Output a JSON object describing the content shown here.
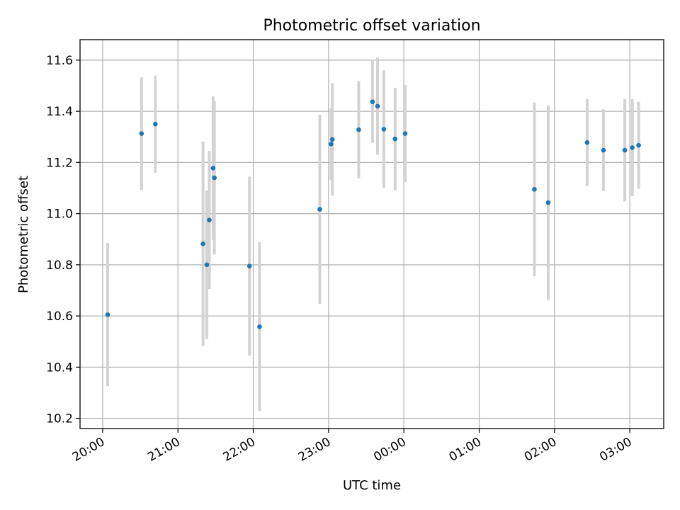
{
  "chart_data": {
    "type": "scatter",
    "title": "Photometric offset variation",
    "xlabel": "UTC time",
    "ylabel": "Photometric offset",
    "grid": true,
    "xlim_hours": [
      19.7,
      27.45
    ],
    "ylim": [
      10.16,
      11.68
    ],
    "x_tick_hours": [
      20,
      21,
      22,
      23,
      24,
      25,
      26,
      27
    ],
    "x_tick_labels": [
      "20:00",
      "21:00",
      "22:00",
      "23:00",
      "00:00",
      "01:00",
      "02:00",
      "03:00"
    ],
    "y_ticks": [
      10.2,
      10.4,
      10.6,
      10.8,
      11.0,
      11.2,
      11.4,
      11.6
    ],
    "y_tick_labels": [
      "10.2",
      "10.4",
      "10.6",
      "10.8",
      "11.0",
      "11.2",
      "11.4",
      "11.6"
    ],
    "colors": {
      "point": "#1f77b4",
      "errorbar": "#d3d3d3"
    },
    "points": [
      {
        "time": "20:04",
        "y": 10.605,
        "err": 0.28
      },
      {
        "time": "20:31",
        "y": 11.313,
        "err": 0.22
      },
      {
        "time": "20:42",
        "y": 11.35,
        "err": 0.19
      },
      {
        "time": "21:20",
        "y": 10.882,
        "err": 0.4
      },
      {
        "time": "21:23",
        "y": 10.8,
        "err": 0.29
      },
      {
        "time": "21:25",
        "y": 10.975,
        "err": 0.27
      },
      {
        "time": "21:28",
        "y": 11.178,
        "err": 0.28
      },
      {
        "time": "21:29",
        "y": 11.14,
        "err": 0.3
      },
      {
        "time": "21:57",
        "y": 10.795,
        "err": 0.35
      },
      {
        "time": "22:05",
        "y": 10.558,
        "err": 0.33
      },
      {
        "time": "22:53",
        "y": 11.017,
        "err": 0.37
      },
      {
        "time": "23:02",
        "y": 11.272,
        "err": 0.14
      },
      {
        "time": "23:03",
        "y": 11.29,
        "err": 0.22
      },
      {
        "time": "23:24",
        "y": 11.328,
        "err": 0.19
      },
      {
        "time": "23:35",
        "y": 11.437,
        "err": 0.16
      },
      {
        "time": "23:39",
        "y": 11.42,
        "err": 0.19
      },
      {
        "time": "23:44",
        "y": 11.33,
        "err": 0.23
      },
      {
        "time": "23:53",
        "y": 11.292,
        "err": 0.2
      },
      {
        "time": "00:01",
        "y": 11.313,
        "err": 0.19
      },
      {
        "time": "01:44",
        "y": 11.095,
        "err": 0.34
      },
      {
        "time": "01:55",
        "y": 11.043,
        "err": 0.38
      },
      {
        "time": "02:26",
        "y": 11.278,
        "err": 0.17
      },
      {
        "time": "02:39",
        "y": 11.248,
        "err": 0.16
      },
      {
        "time": "02:56",
        "y": 11.248,
        "err": 0.2
      },
      {
        "time": "03:02",
        "y": 11.258,
        "err": 0.19
      },
      {
        "time": "03:07",
        "y": 11.267,
        "err": 0.17
      }
    ]
  }
}
